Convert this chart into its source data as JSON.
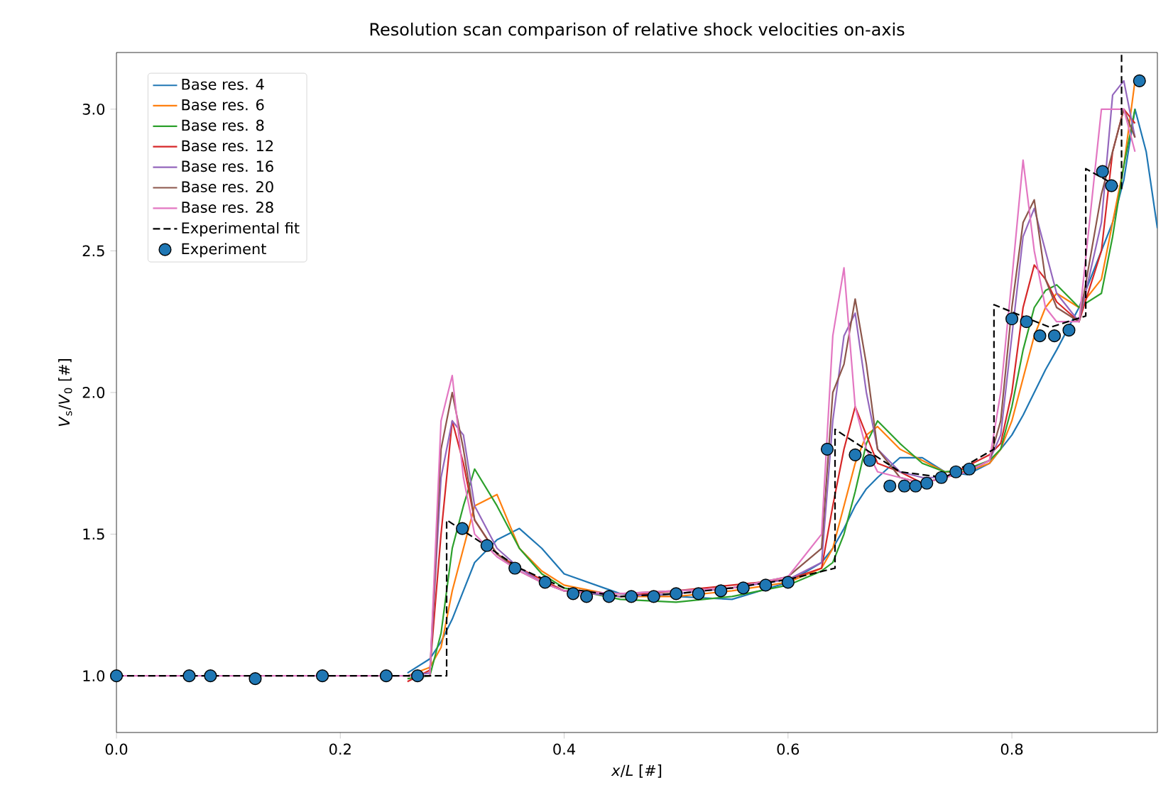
{
  "chart_data": {
    "type": "line",
    "title": "Resolution scan comparison of relative shock velocities on-axis",
    "xlabel": "*x*/*L* [#]",
    "ylabel": "*V*$_{s}$/*V*$_{0}$ [#]",
    "x": [
      0,
      0.1,
      0.2,
      0.26,
      0.28,
      0.29,
      0.3,
      0.31,
      0.32,
      0.34,
      0.36,
      0.38,
      0.4,
      0.45,
      0.5,
      0.55,
      0.6,
      0.63,
      0.64,
      0.65,
      0.66,
      0.67,
      0.68,
      0.7,
      0.72,
      0.74,
      0.76,
      0.78,
      0.79,
      0.8,
      0.81,
      0.82,
      0.83,
      0.84,
      0.86,
      0.88,
      0.89,
      0.9,
      0.91,
      0.92,
      0.93
    ],
    "xlim": [
      0,
      0.93
    ],
    "ylim": [
      0.8,
      3.2
    ],
    "xticks": [
      {
        "value": 0,
        "label": "0.0"
      },
      {
        "value": 0.2,
        "label": "0.2"
      },
      {
        "value": 0.4,
        "label": "0.4"
      },
      {
        "value": 0.6,
        "label": "0.6"
      },
      {
        "value": 0.8,
        "label": "0.8"
      }
    ],
    "yticks": [
      {
        "value": 1,
        "label": "1.0"
      },
      {
        "value": 1.5,
        "label": "1.5"
      },
      {
        "value": 2,
        "label": "2.0"
      },
      {
        "value": 2.5,
        "label": "2.5"
      },
      {
        "value": 3,
        "label": "3.0"
      }
    ],
    "legend": "top left",
    "series": [
      {
        "name": "Base res. 4",
        "color": "#1f77b4",
        "values": [
          null,
          null,
          null,
          1.01,
          1.06,
          1.12,
          1.2,
          1.3,
          1.4,
          1.48,
          1.52,
          1.45,
          1.36,
          1.29,
          1.28,
          1.27,
          1.33,
          1.4,
          1.45,
          1.52,
          1.6,
          1.66,
          1.7,
          1.77,
          1.77,
          1.72,
          1.71,
          1.75,
          1.8,
          1.85,
          1.92,
          2.0,
          2.08,
          2.15,
          2.3,
          2.5,
          2.6,
          2.75,
          3.0,
          2.85,
          2.58
        ]
      },
      {
        "name": "Base res. 6",
        "color": "#ff7f0e",
        "values": [
          null,
          null,
          null,
          1,
          1.03,
          1.1,
          1.3,
          1.45,
          1.6,
          1.64,
          1.45,
          1.37,
          1.32,
          1.28,
          1.28,
          1.3,
          1.33,
          1.38,
          1.45,
          1.6,
          1.75,
          1.85,
          1.88,
          1.8,
          1.76,
          1.72,
          1.72,
          1.75,
          1.8,
          1.9,
          2.05,
          2.2,
          2.3,
          2.35,
          2.3,
          2.4,
          2.6,
          2.8,
          3.1,
          null,
          null
        ]
      },
      {
        "name": "Base res. 8",
        "color": "#2ca02c",
        "values": [
          null,
          null,
          null,
          0.99,
          1.0,
          1.15,
          1.45,
          1.6,
          1.73,
          1.6,
          1.45,
          1.36,
          1.31,
          1.27,
          1.26,
          1.28,
          1.32,
          1.37,
          1.4,
          1.5,
          1.65,
          1.82,
          1.9,
          1.82,
          1.75,
          1.72,
          1.73,
          1.76,
          1.8,
          1.95,
          2.15,
          2.3,
          2.36,
          2.38,
          2.3,
          2.35,
          2.55,
          2.8,
          3.0,
          null,
          null
        ]
      },
      {
        "name": "Base res. 12",
        "color": "#d62728",
        "values": [
          null,
          null,
          null,
          0.98,
          1.02,
          1.5,
          1.9,
          1.75,
          1.55,
          1.43,
          1.38,
          1.34,
          1.3,
          1.28,
          1.3,
          1.32,
          1.34,
          1.38,
          1.6,
          1.8,
          1.95,
          1.85,
          1.75,
          1.72,
          1.68,
          1.7,
          1.74,
          1.78,
          1.82,
          2.0,
          2.3,
          2.45,
          2.4,
          2.32,
          2.25,
          2.5,
          2.85,
          3.0,
          2.95,
          null,
          null
        ]
      },
      {
        "name": "Base res. 16",
        "color": "#9467bd",
        "values": [
          null,
          null,
          null,
          1,
          1.01,
          1.7,
          1.9,
          1.85,
          1.6,
          1.45,
          1.38,
          1.33,
          1.3,
          1.28,
          1.29,
          1.31,
          1.34,
          1.4,
          1.9,
          2.2,
          2.28,
          2.0,
          1.8,
          1.72,
          1.7,
          1.7,
          1.72,
          1.76,
          1.85,
          2.2,
          2.55,
          2.65,
          2.5,
          2.35,
          2.25,
          2.6,
          3.05,
          3.1,
          2.9,
          null,
          null
        ]
      },
      {
        "name": "Base res. 20",
        "color": "#8c564b",
        "values": [
          null,
          null,
          null,
          1,
          1.0,
          1.8,
          2.0,
          1.8,
          1.55,
          1.43,
          1.37,
          1.33,
          1.3,
          1.29,
          1.3,
          1.31,
          1.35,
          1.45,
          2.0,
          2.1,
          2.33,
          2.1,
          1.8,
          1.7,
          1.68,
          1.7,
          1.72,
          1.76,
          1.9,
          2.3,
          2.6,
          2.68,
          2.4,
          2.3,
          2.25,
          2.7,
          null,
          3.0,
          2.9,
          null,
          null
        ]
      },
      {
        "name": "Base res. 28",
        "color": "#e377c2",
        "values": [
          1,
          1,
          1,
          1,
          1.0,
          1.9,
          2.06,
          1.7,
          1.5,
          1.42,
          1.37,
          1.33,
          1.3,
          1.29,
          1.3,
          1.31,
          1.35,
          1.5,
          2.2,
          2.44,
          1.95,
          1.8,
          1.72,
          1.7,
          1.68,
          1.7,
          1.72,
          1.76,
          2.0,
          2.4,
          2.82,
          2.5,
          2.3,
          2.25,
          2.25,
          3.0,
          null,
          3.0,
          2.85,
          null,
          null
        ]
      },
      {
        "name": "Experimental fit",
        "color": "#000000",
        "line_style": "dashed",
        "x": [
          0,
          0.295,
          0.295,
          0.33,
          0.36,
          0.4,
          0.45,
          0.5,
          0.55,
          0.6,
          0.642,
          0.642,
          0.7,
          0.74,
          0.784,
          0.784,
          0.834,
          0.866,
          0.866,
          0.898,
          0.898
        ],
        "values": [
          1.0,
          1.0,
          1.55,
          1.46,
          1.38,
          1.31,
          1.28,
          1.29,
          1.31,
          1.34,
          1.38,
          1.87,
          1.72,
          1.7,
          1.8,
          2.31,
          2.23,
          2.27,
          2.79,
          2.72,
          3.2
        ]
      },
      {
        "name": "Experiment",
        "type": "scatter",
        "marker": "circle",
        "color": "#1f77b4",
        "x": [
          0,
          0.065,
          0.084,
          0.124,
          0.184,
          0.241,
          0.269,
          0.309,
          0.331,
          0.356,
          0.383,
          0.408,
          0.42,
          0.44,
          0.46,
          0.48,
          0.5,
          0.52,
          0.54,
          0.56,
          0.58,
          0.6,
          0.635,
          0.66,
          0.673,
          0.691,
          0.704,
          0.714,
          0.724,
          0.737,
          0.75,
          0.762,
          0.8,
          0.813,
          0.825,
          0.838,
          0.851,
          0.881,
          0.889,
          0.914
        ],
        "values": [
          1,
          1,
          1,
          0.99,
          1,
          1,
          1,
          1.52,
          1.46,
          1.38,
          1.33,
          1.29,
          1.28,
          1.28,
          1.28,
          1.28,
          1.29,
          1.29,
          1.3,
          1.31,
          1.32,
          1.33,
          1.8,
          1.78,
          1.76,
          1.67,
          1.67,
          1.67,
          1.68,
          1.7,
          1.72,
          1.73,
          2.26,
          2.25,
          2.2,
          2.2,
          2.22,
          2.78,
          2.73,
          3.1
        ]
      }
    ]
  }
}
